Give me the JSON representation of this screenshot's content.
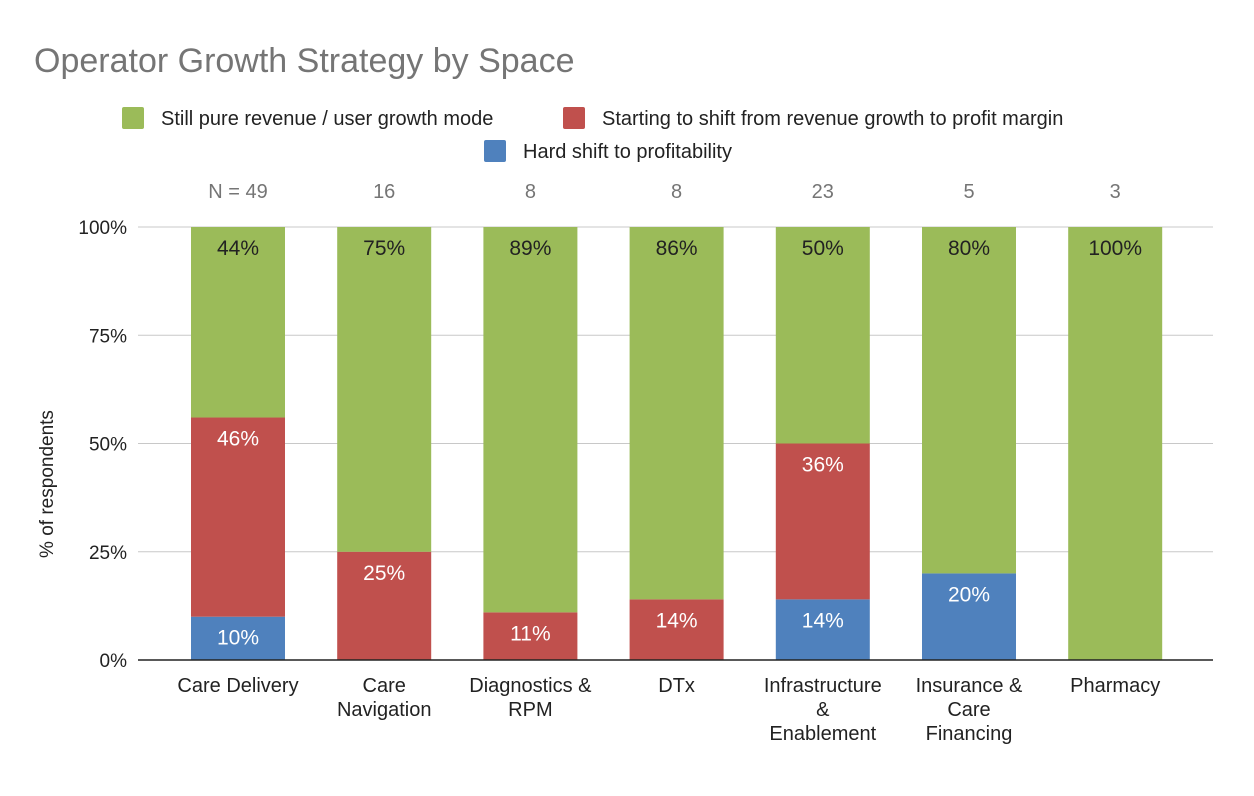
{
  "chart_data": {
    "type": "bar",
    "stacked": true,
    "title": "Operator Growth Strategy by Space",
    "ylabel": "% of respondents",
    "xlabel": "",
    "ylim": [
      0,
      100
    ],
    "yticks": [
      "0%",
      "25%",
      "50%",
      "75%",
      "100%"
    ],
    "ytick_values": [
      0,
      25,
      50,
      75,
      100
    ],
    "grid": true,
    "legend_position": "top",
    "categories": [
      [
        "Care Delivery"
      ],
      [
        "Care",
        "Navigation"
      ],
      [
        "Diagnostics &",
        "RPM"
      ],
      [
        "DTx"
      ],
      [
        "Infrastructure",
        "&",
        "Enablement"
      ],
      [
        "Insurance &",
        "Care",
        "Financing"
      ],
      [
        "Pharmacy"
      ]
    ],
    "n_labels": [
      "N = 49",
      "16",
      "8",
      "8",
      "23",
      "5",
      "3"
    ],
    "series": [
      {
        "name": "Hard shift to profitability",
        "color": "#4f81bd",
        "values": [
          10,
          0,
          0,
          0,
          14,
          20,
          0
        ],
        "labels": [
          "10%",
          "",
          "",
          "",
          "14%",
          "20%",
          ""
        ]
      },
      {
        "name": "Starting to shift from revenue growth to profit margin",
        "color": "#c0504d",
        "values": [
          46,
          25,
          11,
          14,
          36,
          0,
          0
        ],
        "labels": [
          "46%",
          "25%",
          "11%",
          "14%",
          "36%",
          "",
          ""
        ]
      },
      {
        "name": "Still pure revenue / user growth mode",
        "color": "#9bbb59",
        "values": [
          44,
          75,
          89,
          86,
          50,
          80,
          100
        ],
        "labels": [
          "44%",
          "75%",
          "89%",
          "86%",
          "50%",
          "80%",
          "100%"
        ]
      }
    ],
    "legend_order": [
      2,
      1,
      0
    ],
    "colors": {
      "text_on_dark": "#ffffff",
      "text_on_light": "#222222",
      "grid": "#c8c8c8",
      "axis": "#222222"
    }
  }
}
